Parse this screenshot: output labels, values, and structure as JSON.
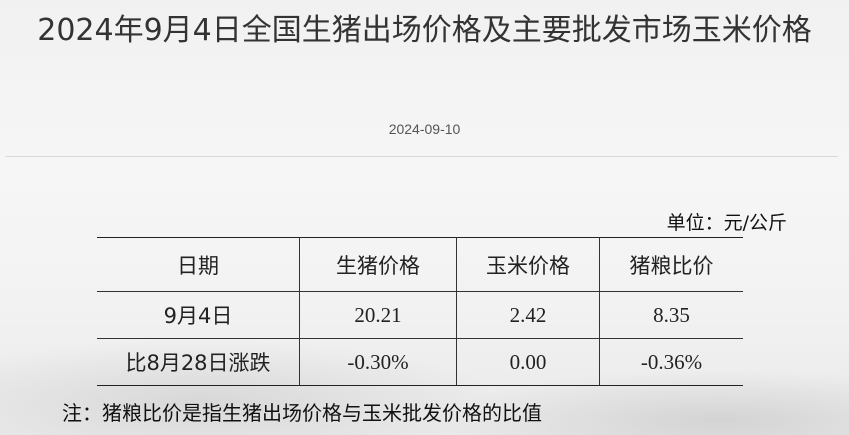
{
  "article": {
    "title": "2024年9月4日全国生猪出场价格及主要批发市场玉米价格",
    "date": "2024-09-10"
  },
  "table": {
    "unit": "单位：元/公斤",
    "headers": [
      "日期",
      "生猪价格",
      "玉米价格",
      "猪粮比价"
    ],
    "rows": [
      [
        "9月4日",
        "20.21",
        "2.42",
        "8.35"
      ],
      [
        "比8月28日涨跌",
        "-0.30%",
        "0.00",
        "-0.36%"
      ]
    ],
    "note": "注：猪粮比价是指生猪出场价格与玉米批发价格的比值"
  }
}
